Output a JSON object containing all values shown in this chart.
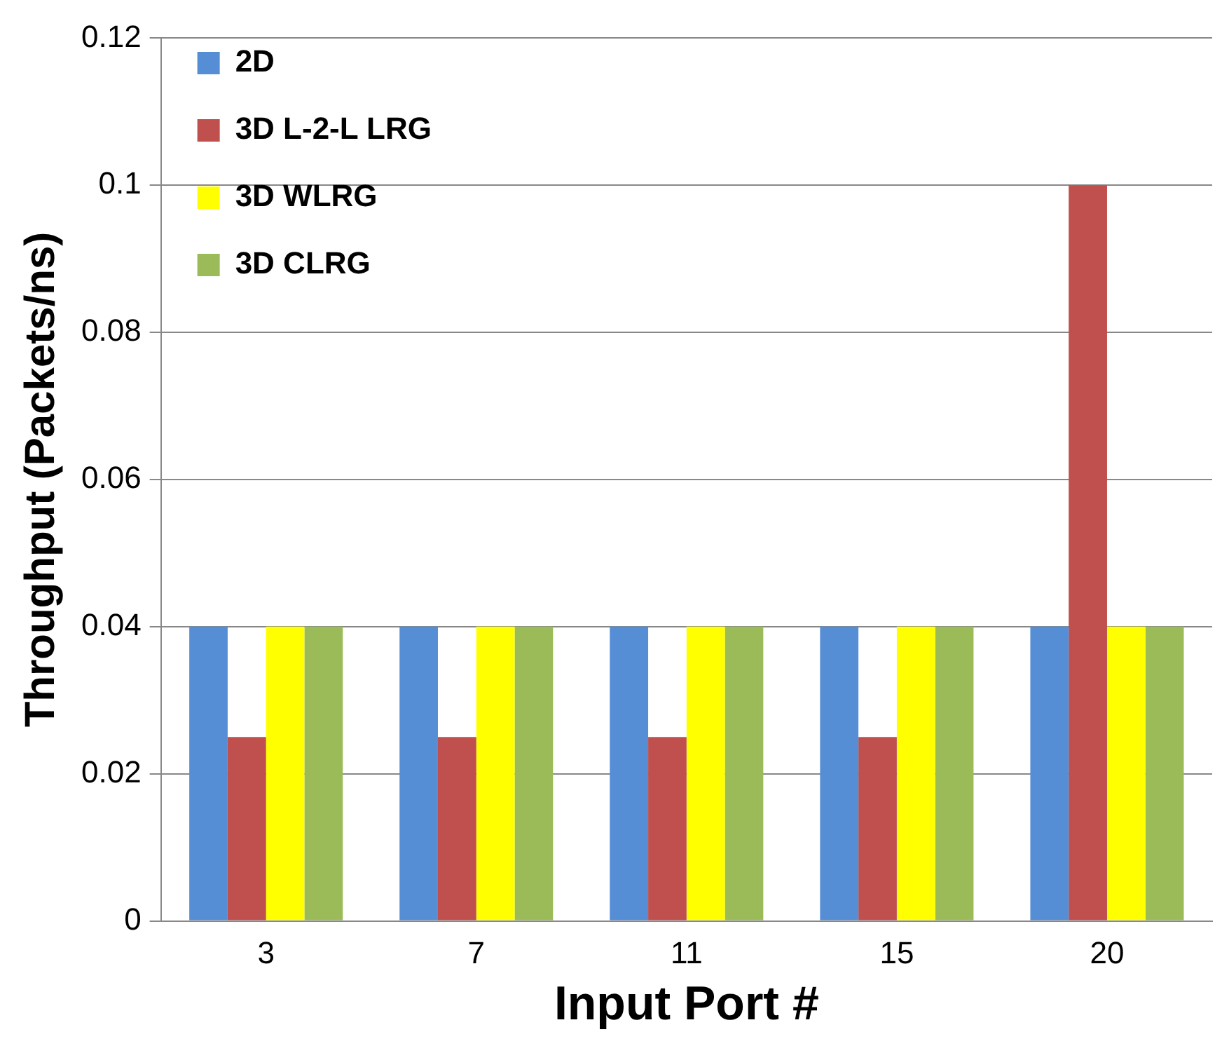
{
  "chart_data": {
    "type": "bar",
    "xlabel": "Input Port #",
    "ylabel": "Throughput (Packets/ns)",
    "categories": [
      "3",
      "7",
      "11",
      "15",
      "20"
    ],
    "series": [
      {
        "name": "2D",
        "color": "#558ed5",
        "values": [
          0.04,
          0.04,
          0.04,
          0.04,
          0.04
        ]
      },
      {
        "name": "3D L-2-L LRG",
        "color": "#c0504d",
        "values": [
          0.025,
          0.025,
          0.025,
          0.025,
          0.1
        ]
      },
      {
        "name": "3D WLRG",
        "color": "#ffff00",
        "values": [
          0.04,
          0.04,
          0.04,
          0.04,
          0.04
        ]
      },
      {
        "name": "3D CLRG",
        "color": "#9bbb59",
        "values": [
          0.04,
          0.04,
          0.04,
          0.04,
          0.04
        ]
      }
    ],
    "ylim": [
      0,
      0.12
    ],
    "yticks": [
      0,
      0.02,
      0.04,
      0.06,
      0.08,
      0.1,
      0.12
    ],
    "grid": "y",
    "legend": "top left"
  }
}
